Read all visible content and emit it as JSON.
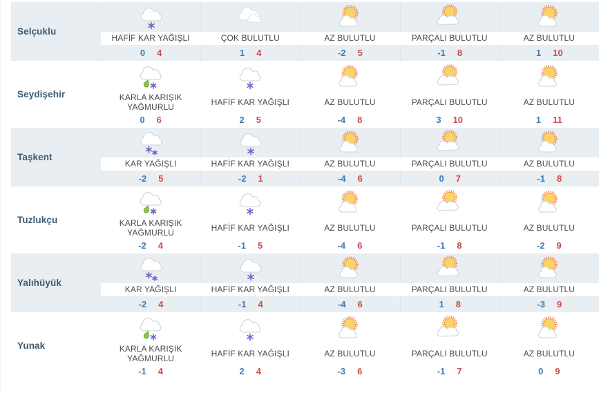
{
  "colors": {
    "row_alt_background": "#e9eef2",
    "city_text": "#3d5c75",
    "condition_text": "#4b4b4b",
    "min_temp": "#3f7cb6",
    "max_temp": "#cd4a4e",
    "snowflake": "#6f63c8",
    "raindrop": "#8dc63f",
    "sun_body": "#fbd36d",
    "sun_halo": "#ee7140",
    "cloud_outline": "#d6d9db"
  },
  "table": {
    "rows": [
      {
        "city": "Selçuklu",
        "cells": [
          {
            "icon": "light-snow",
            "condition": "HAFİF KAR YAĞIŞLI",
            "min": "0",
            "max": "4"
          },
          {
            "icon": "mostly-cloudy",
            "condition": "ÇOK BULUTLU",
            "min": "1",
            "max": "4"
          },
          {
            "icon": "few-clouds",
            "condition": "AZ BULUTLU",
            "min": "-2",
            "max": "5"
          },
          {
            "icon": "partly-cloudy",
            "condition": "PARÇALI BULUTLU",
            "min": "-1",
            "max": "8"
          },
          {
            "icon": "few-clouds",
            "condition": "AZ BULUTLU",
            "min": "1",
            "max": "10"
          }
        ]
      },
      {
        "city": "Seydişehir",
        "cells": [
          {
            "icon": "sleet",
            "condition": "KARLA KARIŞIK YAĞMURLU",
            "min": "0",
            "max": "6"
          },
          {
            "icon": "light-snow",
            "condition": "HAFİF KAR YAĞIŞLI",
            "min": "2",
            "max": "5"
          },
          {
            "icon": "few-clouds",
            "condition": "AZ BULUTLU",
            "min": "-4",
            "max": "8"
          },
          {
            "icon": "partly-cloudy",
            "condition": "PARÇALI BULUTLU",
            "min": "3",
            "max": "10"
          },
          {
            "icon": "few-clouds",
            "condition": "AZ BULUTLU",
            "min": "1",
            "max": "11"
          }
        ]
      },
      {
        "city": "Taşkent",
        "cells": [
          {
            "icon": "snow",
            "condition": "KAR YAĞIŞLI",
            "min": "-2",
            "max": "5"
          },
          {
            "icon": "light-snow",
            "condition": "HAFİF KAR YAĞIŞLI",
            "min": "-2",
            "max": "1"
          },
          {
            "icon": "few-clouds",
            "condition": "AZ BULUTLU",
            "min": "-4",
            "max": "6"
          },
          {
            "icon": "partly-cloudy",
            "condition": "PARÇALI BULUTLU",
            "min": "0",
            "max": "7"
          },
          {
            "icon": "few-clouds",
            "condition": "AZ BULUTLU",
            "min": "-1",
            "max": "8"
          }
        ]
      },
      {
        "city": "Tuzlukçu",
        "cells": [
          {
            "icon": "sleet",
            "condition": "KARLA KARIŞIK YAĞMURLU",
            "min": "-2",
            "max": "4"
          },
          {
            "icon": "light-snow",
            "condition": "HAFİF KAR YAĞIŞLI",
            "min": "-1",
            "max": "5"
          },
          {
            "icon": "few-clouds",
            "condition": "AZ BULUTLU",
            "min": "-4",
            "max": "6"
          },
          {
            "icon": "partly-cloudy",
            "condition": "PARÇALI BULUTLU",
            "min": "-1",
            "max": "8"
          },
          {
            "icon": "few-clouds",
            "condition": "AZ BULUTLU",
            "min": "-2",
            "max": "9"
          }
        ]
      },
      {
        "city": "Yalıhüyük",
        "cells": [
          {
            "icon": "snow",
            "condition": "KAR YAĞIŞLI",
            "min": "-2",
            "max": "4"
          },
          {
            "icon": "light-snow",
            "condition": "HAFİF KAR YAĞIŞLI",
            "min": "-1",
            "max": "4"
          },
          {
            "icon": "few-clouds",
            "condition": "AZ BULUTLU",
            "min": "-4",
            "max": "6"
          },
          {
            "icon": "partly-cloudy",
            "condition": "PARÇALI BULUTLU",
            "min": "1",
            "max": "8"
          },
          {
            "icon": "few-clouds",
            "condition": "AZ BULUTLU",
            "min": "-3",
            "max": "9"
          }
        ]
      },
      {
        "city": "Yunak",
        "cells": [
          {
            "icon": "sleet",
            "condition": "KARLA KARIŞIK YAĞMURLU",
            "min": "-1",
            "max": "4"
          },
          {
            "icon": "light-snow",
            "condition": "HAFİF KAR YAĞIŞLI",
            "min": "2",
            "max": "4"
          },
          {
            "icon": "few-clouds",
            "condition": "AZ BULUTLU",
            "min": "-3",
            "max": "6"
          },
          {
            "icon": "partly-cloudy",
            "condition": "PARÇALI BULUTLU",
            "min": "-1",
            "max": "7"
          },
          {
            "icon": "few-clouds",
            "condition": "AZ BULUTLU",
            "min": "0",
            "max": "9"
          }
        ]
      }
    ]
  }
}
